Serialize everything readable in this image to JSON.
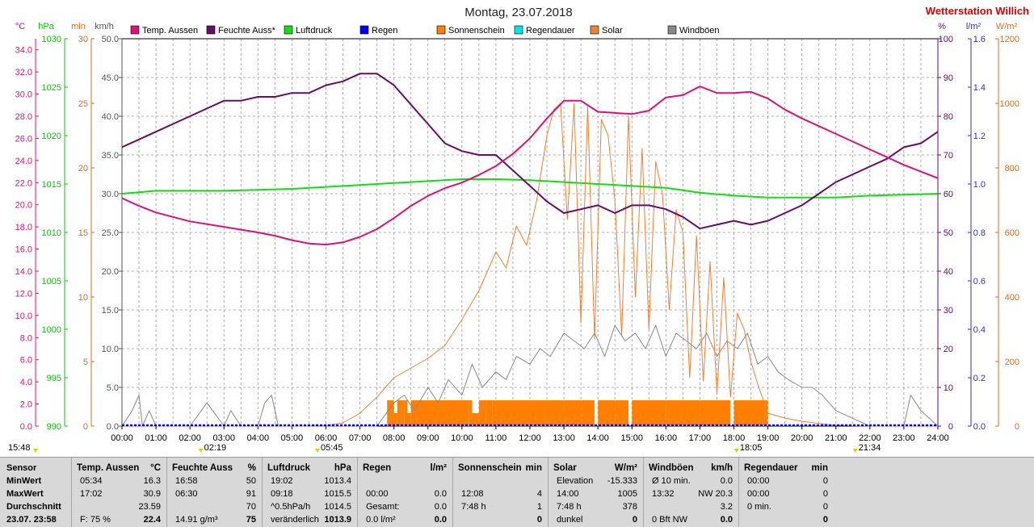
{
  "title": "Montag, 23.07.2018",
  "brand": "Wetterstation Willich",
  "colors": {
    "temp": "#e0107a",
    "hum": "#6a0a6a",
    "press": "#10e010",
    "rain": "#0000ff",
    "sun": "#ff7f00",
    "raindur": "#00e5e5",
    "solar": "#f08030",
    "wind": "#888888",
    "brand": "#e00000"
  },
  "legend": [
    {
      "label": "Temp. Aussen",
      "color": "#e0107a"
    },
    {
      "label": "Feuchte Auss*",
      "color": "#6a0a6a"
    },
    {
      "label": "Luftdruck",
      "color": "#10e010"
    },
    {
      "label": "Regen",
      "color": "#0000ff"
    },
    {
      "label": "Sonnenschein",
      "color": "#ff7f00"
    },
    {
      "label": "Regendauer",
      "color": "#00e5e5"
    },
    {
      "label": "Solar",
      "color": "#f08030"
    },
    {
      "label": "Windböen",
      "color": "#888888"
    }
  ],
  "axes": {
    "temp": {
      "unit": "°C",
      "ticks": [
        "0.0",
        "2.0",
        "4.0",
        "6.0",
        "8.0",
        "10.0",
        "12.0",
        "14.0",
        "16.0",
        "18.0",
        "20.0",
        "22.0",
        "24.0",
        "26.0",
        "28.0",
        "30.0",
        "32.0",
        "34.0"
      ],
      "range": [
        0,
        35
      ]
    },
    "press": {
      "unit": "hPa",
      "ticks": [
        "990",
        "995",
        "1000",
        "1005",
        "1010",
        "1015",
        "1020",
        "1025",
        "1030"
      ],
      "range": [
        990,
        1030
      ]
    },
    "min": {
      "unit": "min",
      "ticks": [
        "0",
        "5",
        "10",
        "15",
        "20",
        "25",
        "30"
      ],
      "range": [
        0,
        30
      ]
    },
    "wind": {
      "unit": "km/h",
      "ticks": [
        "0.0",
        "5.0",
        "10.0",
        "15.0",
        "20.0",
        "25.0",
        "30.0",
        "35.0",
        "40.0",
        "45.0",
        "50.0"
      ],
      "range": [
        0,
        50
      ]
    },
    "hum": {
      "unit": "%",
      "ticks": [
        "0",
        "10",
        "20",
        "30",
        "40",
        "50",
        "60",
        "70",
        "80",
        "90",
        "100"
      ],
      "range": [
        0,
        100
      ]
    },
    "rain": {
      "unit": "l/m²",
      "ticks": [
        "0.0",
        "0.2",
        "0.4",
        "0.6",
        "0.8",
        "1.0",
        "1.2",
        "1.4",
        "1.6"
      ],
      "range": [
        0,
        1.6
      ]
    },
    "solar": {
      "unit": "W/m²",
      "ticks": [
        "0",
        "200",
        "400",
        "600",
        "800",
        "1000",
        "1200"
      ],
      "range": [
        0,
        1200
      ]
    },
    "x": {
      "ticks": [
        "00:00",
        "01:00",
        "02:00",
        "03:00",
        "04:00",
        "05:00",
        "06:00",
        "07:00",
        "08:00",
        "09:00",
        "10:00",
        "11:00",
        "12:00",
        "13:00",
        "14:00",
        "15:00",
        "16:00",
        "17:00",
        "18:00",
        "19:00",
        "20:00",
        "21:00",
        "22:00",
        "23:00",
        "24:00"
      ],
      "range": [
        0,
        24
      ]
    }
  },
  "markers": [
    {
      "label": "15:48",
      "hour": -1
    },
    {
      "label": "02:19",
      "hour": 2.32
    },
    {
      "label": "05:45",
      "hour": 5.75
    },
    {
      "label": "18:05",
      "hour": 18.08
    },
    {
      "label": "21:34",
      "hour": 21.57
    }
  ],
  "chart_data": {
    "type": "line",
    "title": "Montag, 23.07.2018",
    "x_unit": "hour",
    "xlim": [
      0,
      24
    ],
    "series": [
      {
        "name": "Temp. Aussen",
        "axis": "temp",
        "x": [
          0,
          0.5,
          1,
          1.5,
          2,
          3,
          4,
          4.5,
          5,
          5.5,
          6,
          6.5,
          7,
          7.5,
          8,
          8.5,
          9,
          9.5,
          10,
          10.5,
          11,
          11.5,
          12,
          12.5,
          13,
          13.5,
          14,
          14.5,
          15,
          15.5,
          16,
          16.5,
          17,
          17.5,
          18,
          18.5,
          19,
          19.5,
          20,
          21,
          22,
          23,
          24
        ],
        "y": [
          20.6,
          19.9,
          19.3,
          18.9,
          18.5,
          18.0,
          17.5,
          17.2,
          16.8,
          16.5,
          16.4,
          16.6,
          17.1,
          17.8,
          18.8,
          19.9,
          20.8,
          21.5,
          22.0,
          22.7,
          23.5,
          24.6,
          26.0,
          27.8,
          29.4,
          29.4,
          28.4,
          28.3,
          28.2,
          28.5,
          29.7,
          29.9,
          30.7,
          30.1,
          30.1,
          30.2,
          29.6,
          28.6,
          27.8,
          26.4,
          25.0,
          23.6,
          22.4
        ]
      },
      {
        "name": "Feuchte Auss*",
        "axis": "hum",
        "x": [
          0,
          0.5,
          1,
          1.5,
          2,
          2.5,
          3,
          3.5,
          4,
          4.5,
          5,
          5.5,
          6,
          6.5,
          7,
          7.5,
          8,
          8.5,
          9,
          9.5,
          10,
          10.5,
          11,
          11.5,
          12,
          12.5,
          13,
          13.5,
          14,
          14.5,
          15,
          15.5,
          16,
          16.5,
          17,
          17.5,
          18,
          18.5,
          19,
          19.5,
          20,
          20.5,
          21,
          21.5,
          22,
          22.5,
          23,
          23.5,
          24
        ],
        "y": [
          72,
          74,
          76,
          78,
          80,
          82,
          84,
          84,
          85,
          85,
          86,
          86,
          88,
          89,
          91,
          91,
          88,
          83,
          78,
          73,
          71,
          70,
          70,
          66,
          62,
          58,
          55,
          56,
          57,
          55,
          57,
          57,
          56,
          54,
          51,
          52,
          53,
          52,
          53,
          55,
          57,
          60,
          63,
          65,
          67,
          69,
          72,
          73,
          76
        ]
      },
      {
        "name": "Luftdruck",
        "axis": "press",
        "x": [
          0,
          1,
          2,
          3,
          4,
          5,
          6,
          7,
          8,
          9,
          10,
          11,
          12,
          13,
          14,
          15,
          16,
          17,
          18,
          19,
          20,
          21,
          22,
          23,
          24
        ],
        "y": [
          1014.0,
          1014.3,
          1014.3,
          1014.3,
          1014.4,
          1014.5,
          1014.7,
          1014.9,
          1015.1,
          1015.3,
          1015.5,
          1015.5,
          1015.4,
          1015.2,
          1015.0,
          1014.8,
          1014.6,
          1014.1,
          1013.8,
          1013.6,
          1013.6,
          1013.6,
          1013.8,
          1013.9,
          1014.0
        ]
      },
      {
        "name": "Solar",
        "axis": "solar",
        "x": [
          0,
          5.5,
          6,
          6.5,
          7,
          7.5,
          8,
          8.5,
          9,
          9.5,
          10,
          10.5,
          11,
          11.3,
          11.6,
          11.9,
          12.2,
          12.5,
          12.7,
          12.9,
          13.1,
          13.3,
          13.5,
          13.7,
          13.9,
          14.1,
          14.3,
          14.5,
          14.7,
          14.9,
          15.1,
          15.3,
          15.5,
          15.7,
          15.9,
          16.1,
          16.3,
          16.5,
          16.7,
          16.9,
          17.1,
          17.3,
          17.5,
          17.7,
          17.9,
          18.1,
          18.3,
          18.5,
          18.7,
          19,
          19.5,
          20,
          20.5,
          21,
          21.5,
          22,
          24
        ],
        "y": [
          0,
          0,
          2,
          10,
          40,
          90,
          150,
          180,
          210,
          250,
          330,
          420,
          540,
          490,
          620,
          560,
          700,
          900,
          980,
          1000,
          640,
          1000,
          320,
          990,
          270,
          950,
          900,
          700,
          280,
          960,
          400,
          860,
          300,
          820,
          720,
          360,
          670,
          600,
          150,
          590,
          140,
          510,
          100,
          460,
          90,
          350,
          300,
          200,
          130,
          40,
          25,
          15,
          8,
          3,
          1,
          0,
          0
        ]
      },
      {
        "name": "Windböen",
        "axis": "wind",
        "x": [
          0,
          0.3,
          0.5,
          0.6,
          0.8,
          1,
          2,
          2.5,
          3,
          3.2,
          3.5,
          4,
          4.2,
          4.4,
          4.6,
          5,
          6,
          7,
          7.5,
          8,
          8.3,
          8.6,
          9,
          9.3,
          9.6,
          10,
          10.3,
          10.6,
          11,
          11.3,
          11.6,
          12,
          12.3,
          12.6,
          13,
          13.3,
          13.6,
          13.9,
          14.2,
          14.5,
          14.8,
          15.1,
          15.4,
          15.7,
          16,
          16.3,
          16.6,
          16.9,
          17.2,
          17.5,
          17.8,
          18.1,
          18.4,
          18.7,
          19,
          19.3,
          19.6,
          20,
          20.3,
          20.6,
          21,
          21.5,
          22,
          22.5,
          23,
          23.2,
          23.5,
          24
        ],
        "y": [
          0,
          2,
          4,
          0,
          2,
          0,
          0,
          3,
          0,
          2,
          0,
          0,
          3,
          4,
          0,
          0,
          0,
          0,
          0,
          3,
          4,
          2,
          5,
          3,
          6,
          4,
          8,
          5,
          7,
          6,
          9,
          8,
          10,
          9,
          12,
          11,
          10,
          12,
          9,
          13,
          11,
          12,
          10,
          13,
          9,
          12,
          11,
          10,
          12,
          9,
          11,
          10,
          12,
          8,
          9,
          7,
          6,
          5,
          5,
          4,
          2,
          1,
          0,
          0,
          0,
          4,
          2,
          0
        ]
      },
      {
        "name": "Sonnenschein",
        "axis": "min",
        "x": [
          7.8,
          7.9,
          8.0,
          8.1,
          8.2,
          8.3,
          8.4,
          8.5,
          10.2,
          10.3,
          10.5,
          10.7,
          10.9,
          11,
          12,
          13,
          13.5,
          13.9,
          14,
          14.5,
          14.9,
          15,
          16,
          17,
          17.5,
          17.9,
          18,
          18.5,
          18.9,
          19
        ],
        "y": [
          2,
          2,
          1,
          2,
          2,
          2,
          1,
          2,
          2,
          1,
          2,
          2,
          2,
          2,
          2,
          2,
          2,
          0,
          2,
          2,
          0,
          2,
          2,
          2,
          2,
          0,
          2,
          2,
          2,
          0
        ]
      },
      {
        "name": "Regen",
        "axis": "rain",
        "x": [
          0,
          24
        ],
        "y": [
          0,
          0
        ]
      },
      {
        "name": "Regendauer",
        "axis": "min",
        "x": [
          0,
          24
        ],
        "y": [
          0,
          0
        ]
      }
    ]
  },
  "stats": {
    "row_labels": [
      "Sensor",
      "MinWert",
      "MaxWert",
      "Durchschnitt",
      "23.07. 23:58"
    ],
    "groups": [
      {
        "title": "Temp. Aussen",
        "unit": "°C",
        "rows": [
          [
            "05:34",
            "16.3"
          ],
          [
            "17:02",
            "30.9"
          ],
          [
            "",
            "23.59"
          ],
          [
            "F: 75 %",
            "22.4"
          ]
        ]
      },
      {
        "title": "Feuchte Auss",
        "unit": "%",
        "rows": [
          [
            "16:58",
            "50"
          ],
          [
            "06:30",
            "91"
          ],
          [
            "",
            "70"
          ],
          [
            "14.91 g/m³",
            "75"
          ]
        ]
      },
      {
        "title": "Luftdruck",
        "unit": "hPa",
        "rows": [
          [
            "19:02",
            "1013.4"
          ],
          [
            "09:18",
            "1015.5"
          ],
          [
            "^0.5hPa/h",
            "1014.5"
          ],
          [
            "veränderlich",
            "1013.9"
          ]
        ]
      },
      {
        "title": "Regen",
        "unit": "l/m²",
        "rows": [
          [
            "",
            ""
          ],
          [
            "00:00",
            "0.0"
          ],
          [
            "Gesamt:",
            "0.0"
          ],
          [
            "0.0 l/m²",
            "0.0"
          ]
        ]
      },
      {
        "title": "Sonnenschein",
        "unit": "min",
        "rows": [
          [
            "",
            ""
          ],
          [
            "12:08",
            "4"
          ],
          [
            "7:48 h",
            "1"
          ],
          [
            "",
            "0"
          ]
        ]
      },
      {
        "title": "Solar",
        "unit": "W/m²",
        "rows": [
          [
            "Elevation",
            "-15.333"
          ],
          [
            "14:00",
            "1005"
          ],
          [
            "7:48 h",
            "378"
          ],
          [
            "dunkel",
            "0"
          ]
        ]
      },
      {
        "title": "Windböen",
        "unit": "km/h",
        "rows": [
          [
            "Ø 10 min.",
            "0.0"
          ],
          [
            "13:32",
            "NW 20.3"
          ],
          [
            "",
            "3.2"
          ],
          [
            "0 Bft NW",
            "0.0"
          ]
        ]
      },
      {
        "title": "Regendauer",
        "unit": "min",
        "rows": [
          [
            "00:00",
            "0"
          ],
          [
            "00:00",
            "0"
          ],
          [
            "0 min.",
            "0"
          ],
          [
            "",
            "0"
          ]
        ]
      }
    ]
  }
}
